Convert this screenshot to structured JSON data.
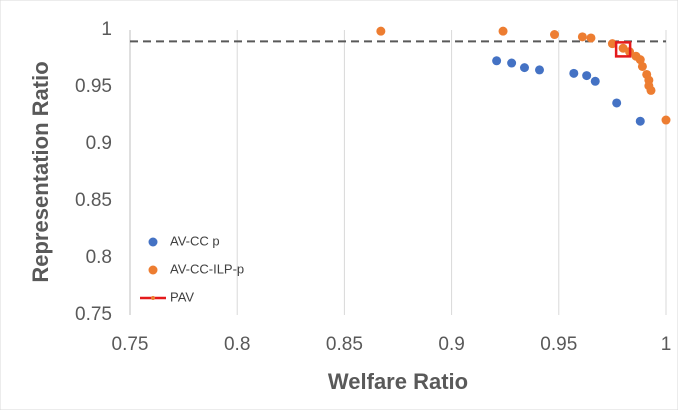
{
  "chart_data": {
    "type": "scatter",
    "x_label": "Welfare Ratio",
    "y_label": "Representation Ratio",
    "xlim": [
      0.75,
      1
    ],
    "ylim": [
      0.75,
      1
    ],
    "xticks": [
      0.75,
      0.8,
      0.85,
      0.9,
      0.95,
      1
    ],
    "yticks": [
      0.75,
      0.8,
      0.85,
      0.9,
      0.95,
      1
    ],
    "grid": "x",
    "legend": "lower left",
    "reference_line": {
      "y": 0.99,
      "style": "dashed",
      "color": "#595959"
    },
    "series": [
      {
        "name": "AV-CC p",
        "color": "#4472c4",
        "marker": "circle",
        "x": [
          0.921,
          0.928,
          0.934,
          0.941,
          0.957,
          0.963,
          0.967,
          0.977,
          0.988
        ],
        "values": [
          0.973,
          0.971,
          0.967,
          0.965,
          0.962,
          0.96,
          0.955,
          0.936,
          0.92
        ]
      },
      {
        "name": "AV-CC-ILP-p",
        "color": "#ed7d31",
        "marker": "circle",
        "x": [
          0.867,
          0.924,
          0.948,
          0.961,
          0.965,
          0.975,
          0.98,
          0.983,
          0.986,
          0.988,
          0.989,
          0.991,
          0.992,
          0.992,
          0.993,
          1.0
        ],
        "values": [
          0.999,
          0.999,
          0.996,
          0.994,
          0.993,
          0.988,
          0.984,
          0.981,
          0.977,
          0.974,
          0.968,
          0.961,
          0.956,
          0.951,
          0.947,
          0.921
        ]
      },
      {
        "name": "PAV",
        "color": "#e41a1c",
        "marker": "square",
        "x": [
          0.98
        ],
        "values": [
          0.983
        ]
      }
    ]
  }
}
